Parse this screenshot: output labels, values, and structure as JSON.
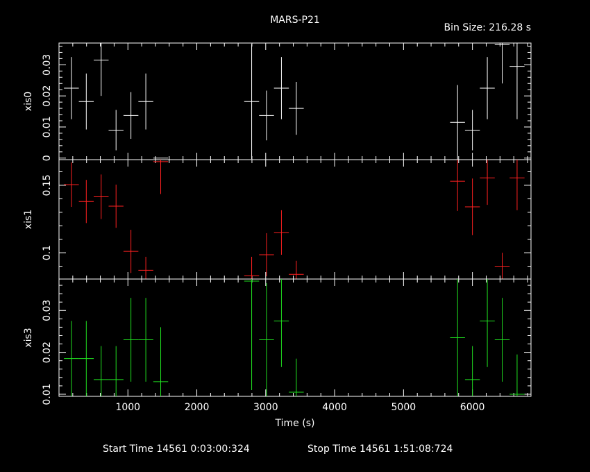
{
  "header": {
    "title": "MARS-P21",
    "bin_size": "Bin Size: 216.28 s"
  },
  "footer": {
    "start_time": "Start Time 14561  0:03:00:324",
    "stop_time": "Stop Time 14561  1:51:08:724"
  },
  "chart_data": {
    "type": "scatter",
    "xlabel": "Time (s)",
    "xlim": [
      0,
      6850
    ],
    "x_ticks": [
      1000,
      2000,
      3000,
      4000,
      5000,
      6000
    ],
    "x_tick_labels": [
      "1000",
      "2000",
      "3000",
      "4000",
      "5000",
      "6000"
    ],
    "x_half_width": 108,
    "panels": [
      {
        "name": "xis0",
        "ylabel": "xis0",
        "color": "#ffffff",
        "ylim": [
          -0.0005,
          0.037
        ],
        "y_ticks": [
          0,
          0.01,
          0.02,
          0.03
        ],
        "y_tick_labels": [
          "0",
          "0.01",
          "0.02",
          "0.03"
        ],
        "points": [
          {
            "x": 180,
            "y": 0.0225,
            "err": 0.01
          },
          {
            "x": 396,
            "y": 0.0182,
            "err": 0.009
          },
          {
            "x": 612,
            "y": 0.0315,
            "err": 0.0115
          },
          {
            "x": 828,
            "y": 0.009,
            "err": 0.0065
          },
          {
            "x": 1044,
            "y": 0.0137,
            "err": 0.0075
          },
          {
            "x": 1260,
            "y": 0.0182,
            "err": 0.009
          },
          {
            "x": 1476,
            "y": 0.0,
            "err": 0.0
          },
          {
            "x": 2796,
            "y": 0.0182,
            "err": 0.0185
          },
          {
            "x": 3012,
            "y": 0.0137,
            "err": 0.008
          },
          {
            "x": 3228,
            "y": 0.0225,
            "err": 0.01
          },
          {
            "x": 3444,
            "y": 0.016,
            "err": 0.0085
          },
          {
            "x": 5784,
            "y": 0.0115,
            "err": 0.012
          },
          {
            "x": 6000,
            "y": 0.009,
            "err": 0.0065
          },
          {
            "x": 6216,
            "y": 0.0225,
            "err": 0.01
          },
          {
            "x": 6432,
            "y": 0.0365,
            "err": 0.0125
          },
          {
            "x": 6648,
            "y": 0.0295,
            "err": 0.017
          }
        ]
      },
      {
        "name": "xis1",
        "ylabel": "xis1",
        "color": "#ff2020",
        "ylim": [
          0.0805,
          0.169
        ],
        "y_ticks": [
          0.1,
          0.15
        ],
        "y_tick_labels": [
          "0.1",
          "0.15"
        ],
        "points": [
          {
            "x": 180,
            "y": 0.1505,
            "err": 0.0165
          },
          {
            "x": 396,
            "y": 0.138,
            "err": 0.016
          },
          {
            "x": 612,
            "y": 0.1415,
            "err": 0.0165
          },
          {
            "x": 828,
            "y": 0.1345,
            "err": 0.016
          },
          {
            "x": 1044,
            "y": 0.101,
            "err": 0.016
          },
          {
            "x": 1260,
            "y": 0.087,
            "err": 0.01
          },
          {
            "x": 1476,
            "y": 0.1675,
            "err": 0.024
          },
          {
            "x": 2796,
            "y": 0.083,
            "err": 0.014
          },
          {
            "x": 3012,
            "y": 0.0985,
            "err": 0.016
          },
          {
            "x": 3228,
            "y": 0.115,
            "err": 0.0165
          },
          {
            "x": 3444,
            "y": 0.084,
            "err": 0.01
          },
          {
            "x": 5784,
            "y": 0.153,
            "err": 0.022
          },
          {
            "x": 6000,
            "y": 0.134,
            "err": 0.021
          },
          {
            "x": 6216,
            "y": 0.1555,
            "err": 0.02
          },
          {
            "x": 6432,
            "y": 0.09,
            "err": 0.01
          },
          {
            "x": 6648,
            "y": 0.1555,
            "err": 0.024
          }
        ]
      },
      {
        "name": "xis3",
        "ylabel": "xis3",
        "color": "#20e020",
        "ylim": [
          0.0095,
          0.0375
        ],
        "y_ticks": [
          0.01,
          0.02,
          0.03
        ],
        "y_tick_labels": [
          "0.01",
          "0.02",
          "0.03"
        ],
        "points": [
          {
            "x": 180,
            "y": 0.0185,
            "err": 0.009
          },
          {
            "x": 396,
            "y": 0.0185,
            "err": 0.009
          },
          {
            "x": 612,
            "y": 0.0135,
            "err": 0.008
          },
          {
            "x": 828,
            "y": 0.0135,
            "err": 0.008
          },
          {
            "x": 1044,
            "y": 0.023,
            "err": 0.01
          },
          {
            "x": 1260,
            "y": 0.023,
            "err": 0.01
          },
          {
            "x": 1476,
            "y": 0.013,
            "err": 0.013
          },
          {
            "x": 2796,
            "y": 0.037,
            "err": 0.026
          },
          {
            "x": 3012,
            "y": 0.023,
            "err": 0.0135
          },
          {
            "x": 3228,
            "y": 0.0275,
            "err": 0.011
          },
          {
            "x": 3444,
            "y": 0.0105,
            "err": 0.008
          },
          {
            "x": 5784,
            "y": 0.0235,
            "err": 0.014
          },
          {
            "x": 6000,
            "y": 0.0135,
            "err": 0.008
          },
          {
            "x": 6216,
            "y": 0.0275,
            "err": 0.011
          },
          {
            "x": 6432,
            "y": 0.023,
            "err": 0.01
          },
          {
            "x": 6648,
            "y": 0.01,
            "err": 0.0095
          }
        ]
      }
    ]
  }
}
